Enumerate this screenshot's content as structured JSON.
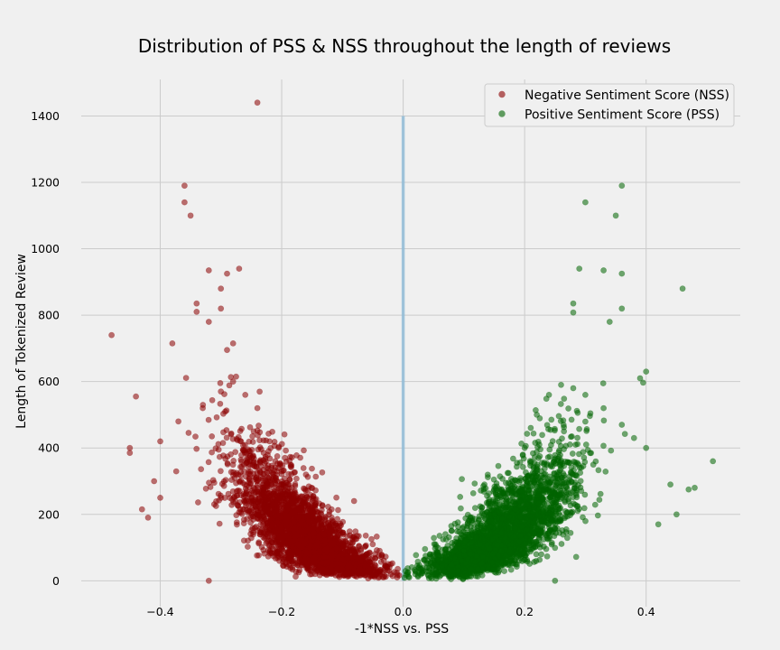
{
  "chart_data": {
    "type": "scatter",
    "title": "Distribution of PSS & NSS throughout the length of reviews",
    "xlabel": "-1*NSS vs. PSS",
    "ylabel": "Length of Tokenized Review",
    "xlim": [
      -0.53,
      0.555
    ],
    "ylim": [
      -78,
      1510
    ],
    "x_ticks": [
      -0.4,
      -0.2,
      0.0,
      0.2,
      0.4
    ],
    "x_tick_labels": [
      "−0.4",
      "−0.2",
      "0.0",
      "0.2",
      "0.4"
    ],
    "y_ticks": [
      0,
      200,
      400,
      600,
      800,
      1000,
      1200,
      1400
    ],
    "y_tick_labels": [
      "0",
      "200",
      "400",
      "600",
      "800",
      "1000",
      "1200",
      "1400"
    ],
    "grid": true,
    "legend_position": "top-right",
    "reference_line": {
      "x": 0,
      "y_range": [
        0,
        1400
      ],
      "color": "#8fbcd8"
    },
    "series": [
      {
        "name": "Negative Sentiment Score (NSS)",
        "color": "#8b0000",
        "distribution": "dense cloud spanning x ≈ −0.45 to 0, length rising with |x|",
        "points": [
          [
            -0.24,
            1440
          ],
          [
            -0.36,
            1190
          ],
          [
            -0.36,
            1140
          ],
          [
            -0.35,
            1100
          ],
          [
            -0.48,
            740
          ],
          [
            -0.32,
            935
          ],
          [
            -0.29,
            925
          ],
          [
            -0.27,
            940
          ],
          [
            -0.3,
            880
          ],
          [
            -0.34,
            835
          ],
          [
            -0.3,
            820
          ],
          [
            -0.34,
            810
          ],
          [
            -0.32,
            780
          ],
          [
            -0.38,
            715
          ],
          [
            -0.28,
            715
          ],
          [
            -0.29,
            695
          ],
          [
            -0.44,
            555
          ],
          [
            -0.45,
            400
          ],
          [
            -0.45,
            385
          ],
          [
            -0.43,
            215
          ],
          [
            -0.42,
            190
          ],
          [
            -0.32,
            0
          ],
          [
            -0.05,
            110
          ],
          [
            -0.04,
            75
          ],
          [
            -0.03,
            40
          ],
          [
            -0.02,
            20
          ],
          [
            -0.01,
            10
          ],
          [
            -0.07,
            60
          ],
          [
            -0.1,
            80
          ],
          [
            -0.12,
            120
          ],
          [
            -0.15,
            180
          ],
          [
            -0.18,
            260
          ],
          [
            -0.2,
            330
          ],
          [
            -0.22,
            420
          ],
          [
            -0.24,
            520
          ],
          [
            -0.26,
            560
          ],
          [
            -0.28,
            600
          ],
          [
            -0.3,
            570
          ],
          [
            -0.33,
            520
          ],
          [
            -0.37,
            480
          ],
          [
            -0.4,
            420
          ],
          [
            -0.41,
            300
          ],
          [
            -0.4,
            250
          ]
        ]
      },
      {
        "name": "Positive Sentiment Score (PSS)",
        "color": "#006400",
        "distribution": "dense cloud spanning x ≈ 0 to 0.5, length rising with x",
        "points": [
          [
            0.36,
            1190
          ],
          [
            0.3,
            1140
          ],
          [
            0.35,
            1100
          ],
          [
            0.46,
            880
          ],
          [
            0.29,
            940
          ],
          [
            0.33,
            935
          ],
          [
            0.36,
            925
          ],
          [
            0.28,
            835
          ],
          [
            0.36,
            820
          ],
          [
            0.28,
            808
          ],
          [
            0.34,
            780
          ],
          [
            0.51,
            360
          ],
          [
            0.48,
            280
          ],
          [
            0.47,
            275
          ],
          [
            0.44,
            290
          ],
          [
            0.45,
            200
          ],
          [
            0.42,
            170
          ],
          [
            0.4,
            630
          ],
          [
            0.39,
            610
          ],
          [
            0.25,
            0
          ],
          [
            0.05,
            80
          ],
          [
            0.04,
            60
          ],
          [
            0.03,
            35
          ],
          [
            0.02,
            20
          ],
          [
            0.01,
            10
          ],
          [
            0.07,
            60
          ],
          [
            0.1,
            90
          ],
          [
            0.12,
            130
          ],
          [
            0.15,
            200
          ],
          [
            0.18,
            300
          ],
          [
            0.2,
            400
          ],
          [
            0.22,
            500
          ],
          [
            0.24,
            560
          ],
          [
            0.26,
            590
          ],
          [
            0.28,
            580
          ],
          [
            0.3,
            560
          ],
          [
            0.33,
            520
          ],
          [
            0.36,
            470
          ],
          [
            0.38,
            430
          ],
          [
            0.4,
            400
          ]
        ]
      }
    ]
  }
}
